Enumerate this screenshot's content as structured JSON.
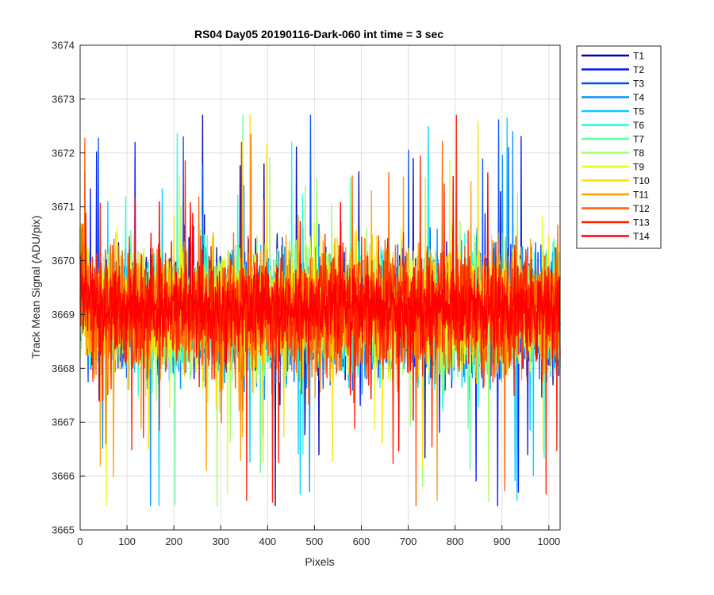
{
  "chart_data": {
    "type": "line",
    "title": "RS04 Day05 20190116-Dark-060 int time = 3 sec",
    "xlabel": "Pixels",
    "ylabel": "Track Mean Signal (ADU/pix)",
    "xlim": [
      0,
      1024
    ],
    "ylim": [
      3665,
      3674
    ],
    "xticks": [
      0,
      100,
      200,
      300,
      400,
      500,
      600,
      700,
      800,
      900,
      1000
    ],
    "yticks": [
      3665,
      3666,
      3667,
      3668,
      3669,
      3670,
      3671,
      3672,
      3673,
      3674
    ],
    "grid": true,
    "legend_position": "outside-top-right",
    "series_summary": {
      "n_points_per_series": 1024,
      "typical_mean": 3669.0,
      "typical_range": [
        3666.0,
        3672.5
      ],
      "start_level": 3670.0
    },
    "series": [
      {
        "name": "T1",
        "color": "#0000b0",
        "mean": 3669.05,
        "spread": 0.85
      },
      {
        "name": "T2",
        "color": "#0014ff",
        "mean": 3669.0,
        "spread": 0.85
      },
      {
        "name": "T3",
        "color": "#0050ff",
        "mean": 3669.0,
        "spread": 0.85
      },
      {
        "name": "T4",
        "color": "#0090ff",
        "mean": 3668.95,
        "spread": 0.85
      },
      {
        "name": "T5",
        "color": "#00d0ff",
        "mean": 3669.0,
        "spread": 0.85
      },
      {
        "name": "T6",
        "color": "#20ffe0",
        "mean": 3669.0,
        "spread": 0.85
      },
      {
        "name": "T7",
        "color": "#60ffa0",
        "mean": 3669.05,
        "spread": 0.85
      },
      {
        "name": "T8",
        "color": "#a0ff60",
        "mean": 3669.05,
        "spread": 0.85
      },
      {
        "name": "T9",
        "color": "#e0ff20",
        "mean": 3669.1,
        "spread": 0.85
      },
      {
        "name": "T10",
        "color": "#ffe000",
        "mean": 3669.1,
        "spread": 0.85
      },
      {
        "name": "T11",
        "color": "#ffa000",
        "mean": 3669.0,
        "spread": 0.85
      },
      {
        "name": "T12",
        "color": "#ff6000",
        "mean": 3669.0,
        "spread": 0.85
      },
      {
        "name": "T13",
        "color": "#ff2000",
        "mean": 3669.05,
        "spread": 0.85
      },
      {
        "name": "T14",
        "color": "#ff0000",
        "mean": 3669.1,
        "spread": 0.55
      }
    ]
  }
}
